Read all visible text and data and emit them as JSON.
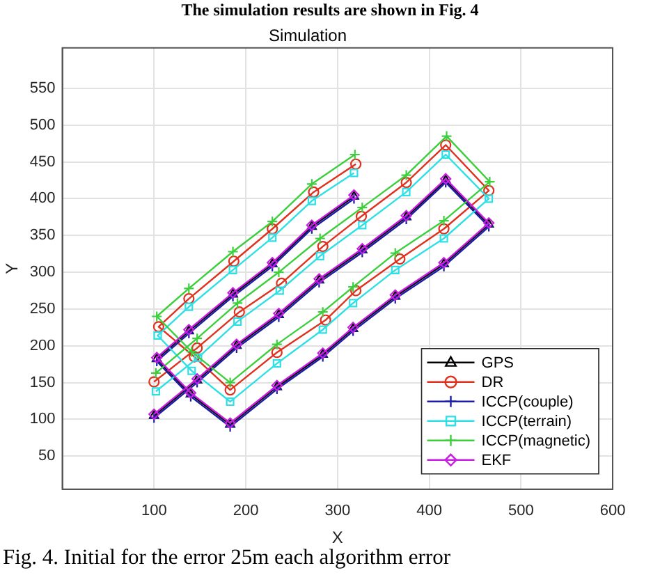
{
  "chart_data": {
    "type": "line",
    "title": "Simulation",
    "xlabel": "X",
    "ylabel": "Y",
    "annotations": [
      "The simulation results are shown in Fig. 4",
      "Fig. 4. Initial for the error 25m each algorithm error"
    ],
    "xlim": [
      0,
      600
    ],
    "ylim": [
      5,
      605
    ],
    "xticks": [
      100,
      200,
      300,
      400,
      500,
      600
    ],
    "yticks": [
      50,
      100,
      150,
      200,
      250,
      300,
      350,
      400,
      450,
      500,
      550
    ],
    "grid": true,
    "legend": "bottom right",
    "series": [
      {
        "name": "GPS",
        "color": "#000000",
        "marker": "triangle",
        "x": [
          100,
          147,
          190,
          236,
          280,
          327,
          375,
          418,
          465,
          416,
          363,
          317,
          284,
          234,
          183,
          140,
          103,
          138,
          186,
          229,
          272,
          318
        ],
        "values": [
          105,
          153,
          200,
          242,
          289,
          330,
          375,
          425,
          365,
          311,
          267,
          223,
          188,
          144,
          93,
          134,
          182,
          220,
          270,
          311,
          362,
          403
        ]
      },
      {
        "name": "DR",
        "color": "#e0301e",
        "marker": "circle",
        "x": [
          100,
          147,
          193,
          239,
          284,
          326,
          375,
          418,
          465,
          416,
          368,
          320,
          287,
          234,
          183,
          144,
          105,
          138,
          187,
          229,
          274,
          320
        ],
        "values": [
          151,
          197,
          246,
          285,
          335,
          376,
          422,
          473,
          411,
          359,
          318,
          275,
          235,
          191,
          140,
          185,
          226,
          264,
          315,
          359,
          409,
          447
        ]
      },
      {
        "name": "ICCP(couple)",
        "color": "#1c1ca8",
        "marker": "cross",
        "x": [
          100,
          147,
          190,
          236,
          280,
          327,
          375,
          418,
          465,
          416,
          363,
          317,
          284,
          234,
          183,
          140,
          103,
          138,
          186,
          229,
          272,
          318
        ],
        "values": [
          102,
          150,
          197,
          239,
          286,
          327,
          372,
          422,
          362,
          308,
          264,
          220,
          185,
          141,
          90,
          131,
          179,
          217,
          267,
          308,
          359,
          400
        ]
      },
      {
        "name": "ICCP(terrain)",
        "color": "#2ee0e6",
        "marker": "square",
        "x": [
          102,
          148,
          191,
          237,
          281,
          327,
          375,
          418,
          465,
          416,
          363,
          317,
          284,
          234,
          183,
          141,
          104,
          138,
          186,
          229,
          272,
          318
        ],
        "values": [
          138,
          184,
          233,
          275,
          322,
          364,
          409,
          460,
          400,
          346,
          303,
          258,
          222,
          176,
          124,
          166,
          214,
          253,
          303,
          347,
          397,
          435
        ]
      },
      {
        "name": "ICCP(magnetic)",
        "color": "#3ccf3c",
        "marker": "cross",
        "x": [
          102,
          147,
          191,
          236,
          281,
          327,
          375,
          419,
          466,
          416,
          363,
          317,
          284,
          234,
          183,
          141,
          103,
          138,
          186,
          229,
          272,
          319
        ],
        "values": [
          163,
          210,
          258,
          300,
          346,
          388,
          432,
          485,
          423,
          370,
          326,
          280,
          246,
          202,
          150,
          192,
          240,
          278,
          328,
          369,
          420,
          460
        ]
      },
      {
        "name": "EKF",
        "color": "#c81ee0",
        "marker": "diamond",
        "x": [
          100,
          147,
          190,
          236,
          280,
          327,
          375,
          418,
          465,
          416,
          363,
          317,
          284,
          234,
          183,
          140,
          103,
          138,
          186,
          229,
          272,
          318
        ],
        "values": [
          107,
          155,
          202,
          244,
          291,
          332,
          377,
          427,
          367,
          313,
          269,
          225,
          190,
          146,
          95,
          136,
          184,
          222,
          272,
          313,
          364,
          405
        ]
      }
    ]
  }
}
